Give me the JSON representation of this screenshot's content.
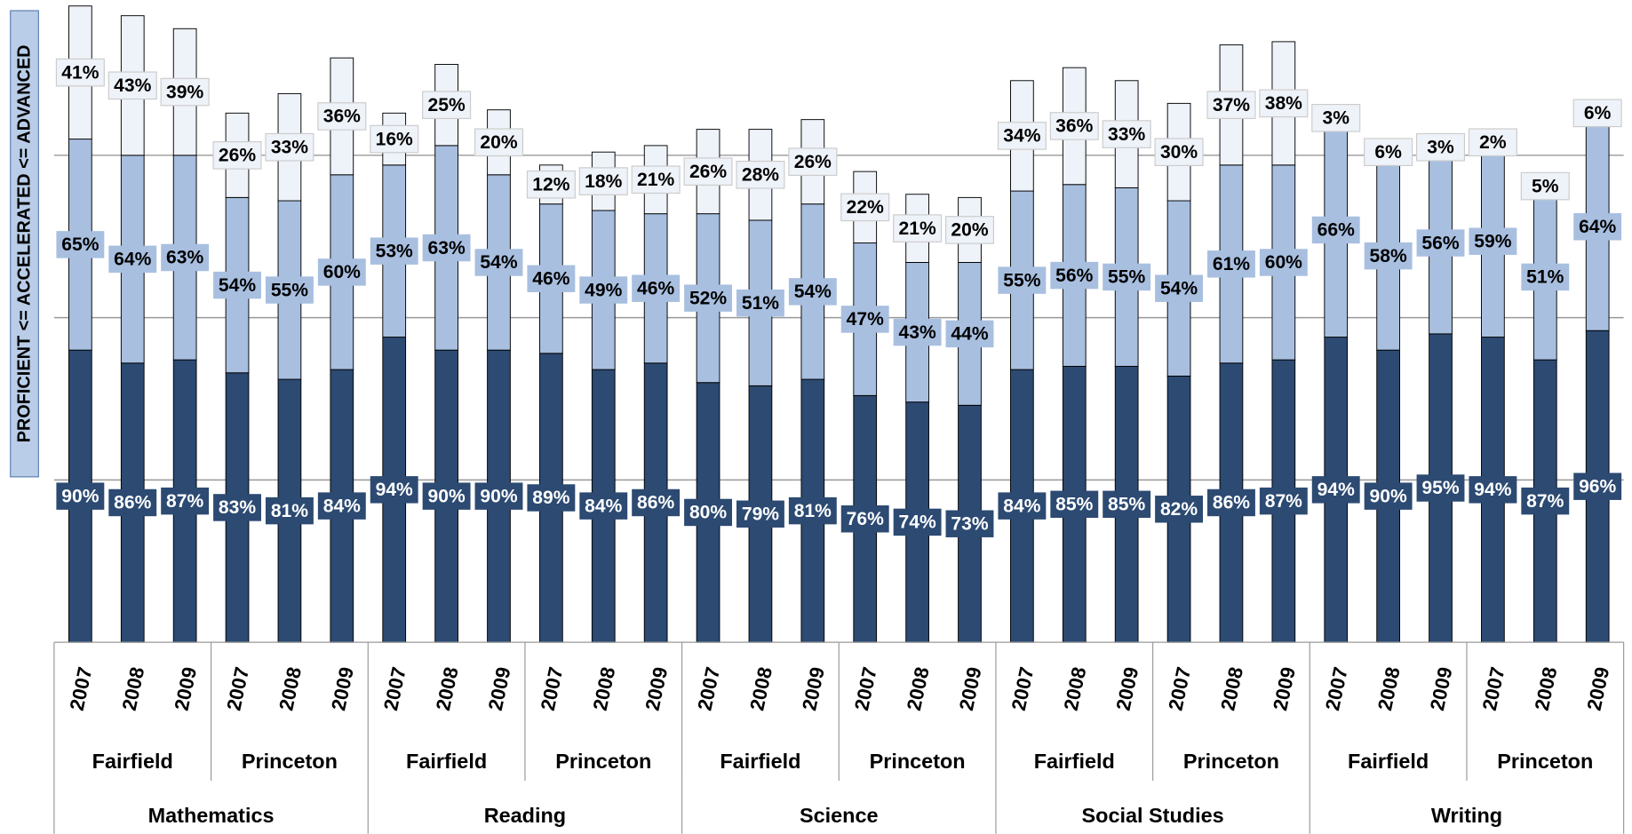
{
  "chart_data": {
    "type": "stacked_bar",
    "y_axis_label": "PROFICIENT <= ACCELERATED <= ADVANCED",
    "categories": [
      "2007",
      "2008",
      "2009",
      "2007",
      "2008",
      "2009",
      "2007",
      "2008",
      "2009",
      "2007",
      "2008",
      "2009",
      "2007",
      "2008",
      "2009",
      "2007",
      "2008",
      "2009",
      "2007",
      "2008",
      "2009",
      "2007",
      "2008",
      "2009",
      "2007",
      "2008",
      "2009",
      "2007",
      "2008",
      "2009"
    ],
    "schools": [
      "Fairfield",
      "Princeton",
      "Fairfield",
      "Princeton",
      "Fairfield",
      "Princeton",
      "Fairfield",
      "Princeton",
      "Fairfield",
      "Princeton"
    ],
    "subjects": [
      "Mathematics",
      "Reading",
      "Science",
      "Social Studies",
      "Writing"
    ],
    "ylim": [
      0,
      200
    ],
    "grid_lines": [
      50,
      100,
      150
    ],
    "series": [
      {
        "name": "Proficient",
        "color": "#2c4a72",
        "label_color": "#ffffff",
        "values": [
          90,
          86,
          87,
          83,
          81,
          84,
          94,
          90,
          90,
          89,
          84,
          86,
          80,
          79,
          81,
          76,
          74,
          73,
          84,
          85,
          85,
          82,
          86,
          87,
          94,
          90,
          95,
          94,
          87,
          96
        ],
        "value_labels": [
          "90%",
          "86%",
          "87%",
          "83%",
          "81%",
          "84%",
          "94%",
          "90%",
          "90%",
          "89%",
          "84%",
          "86%",
          "80%",
          "79%",
          "81%",
          "76%",
          "74%",
          "73%",
          "84%",
          "85%",
          "85%",
          "82%",
          "86%",
          "87%",
          "94%",
          "90%",
          "95%",
          "94%",
          "87%",
          "96%"
        ]
      },
      {
        "name": "Accelerated",
        "color": "#a8bfe0",
        "label_color": "#000000",
        "values": [
          65,
          64,
          63,
          54,
          55,
          60,
          53,
          63,
          54,
          46,
          49,
          46,
          52,
          51,
          54,
          47,
          43,
          44,
          55,
          56,
          55,
          54,
          61,
          60,
          66,
          58,
          56,
          59,
          51,
          64
        ],
        "value_labels": [
          "65%",
          "64%",
          "63%",
          "54%",
          "55%",
          "60%",
          "53%",
          "63%",
          "54%",
          "46%",
          "49%",
          "46%",
          "52%",
          "51%",
          "54%",
          "47%",
          "43%",
          "44%",
          "55%",
          "56%",
          "55%",
          "54%",
          "61%",
          "60%",
          "66%",
          "58%",
          "56%",
          "59%",
          "51%",
          "64%"
        ]
      },
      {
        "name": "Advanced",
        "color": "#eef2f9",
        "label_color": "#000000",
        "values": [
          41,
          43,
          39,
          26,
          33,
          36,
          16,
          25,
          20,
          12,
          18,
          21,
          26,
          28,
          26,
          22,
          21,
          20,
          34,
          36,
          33,
          30,
          37,
          38,
          3,
          6,
          3,
          2,
          5,
          6
        ],
        "value_labels": [
          "41%",
          "43%",
          "39%",
          "26%",
          "33%",
          "36%",
          "16%",
          "25%",
          "20%",
          "12%",
          "18%",
          "21%",
          "26%",
          "28%",
          "26%",
          "22%",
          "21%",
          "20%",
          "34%",
          "36%",
          "33%",
          "30%",
          "37%",
          "38%",
          "3%",
          "6%",
          "3%",
          "2%",
          "5%",
          "6%"
        ]
      }
    ]
  }
}
